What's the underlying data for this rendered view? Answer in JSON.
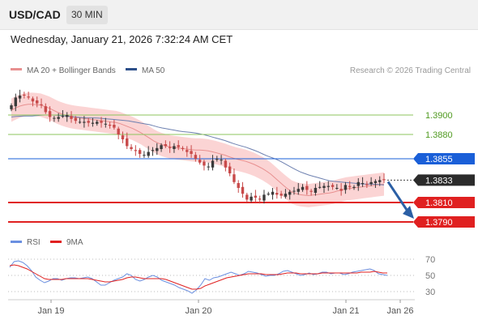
{
  "header": {
    "pair": "USD/CAD",
    "timeframe": "30 MIN"
  },
  "datetime": "Wednesday, January 21, 2026 7:32:24 AM CET",
  "legend": {
    "ma20": "MA 20 + Bollinger Bands",
    "ma50": "MA 50",
    "copyright": "Research © 2026 Trading Central"
  },
  "colors": {
    "up": "#3a3a3a",
    "down": "#c84a4a",
    "band": "#f9c6c6",
    "ma20": "#e89090",
    "ma50": "#6d80b0",
    "resistance": "#8dc45c",
    "pivot": "#1a5fd8",
    "support": "#e02020",
    "arrow": "#2b5fa5",
    "rsi": "#6a8fe0",
    "rsi_ma": "#e02020"
  },
  "chart_data": [
    {
      "type": "candlestick",
      "ylim": [
        1.3775,
        1.3935
      ],
      "x_tick_labels": [
        "Jan 19",
        "Jan 20",
        "Jan 21",
        "Jan 26"
      ],
      "levels": [
        {
          "label": "1.3900",
          "value": 1.39,
          "kind": "resistance"
        },
        {
          "label": "1.3880",
          "value": 1.388,
          "kind": "resistance"
        },
        {
          "label": "1.3855",
          "value": 1.3855,
          "kind": "pivot"
        },
        {
          "label": "1.3833",
          "value": 1.3833,
          "kind": "last"
        },
        {
          "label": "1.3810",
          "value": 1.381,
          "kind": "support"
        },
        {
          "label": "1.3790",
          "value": 1.379,
          "kind": "support"
        }
      ],
      "close_path": [
        1.391,
        1.3918,
        1.392,
        1.392,
        1.3918,
        1.3914,
        1.3912,
        1.391,
        1.3903,
        1.3898,
        1.3897,
        1.3898,
        1.3899,
        1.39,
        1.3896,
        1.3894,
        1.3893,
        1.3893,
        1.3892,
        1.3892,
        1.3893,
        1.3892,
        1.3891,
        1.3889,
        1.3887,
        1.388,
        1.3875,
        1.3868,
        1.3865,
        1.3863,
        1.386,
        1.3859,
        1.3862,
        1.3864,
        1.3866,
        1.3869,
        1.3868,
        1.3866,
        1.3868,
        1.3867,
        1.3865,
        1.3862,
        1.386,
        1.3855,
        1.3851,
        1.3848,
        1.3847,
        1.3853,
        1.3855,
        1.3854,
        1.3846,
        1.384,
        1.3831,
        1.3825,
        1.3819,
        1.3813,
        1.3816,
        1.3815,
        1.3813,
        1.3818,
        1.3819,
        1.3821,
        1.3818,
        1.3817,
        1.3819,
        1.3821,
        1.3822,
        1.3824,
        1.3826,
        1.3823,
        1.3821,
        1.3825,
        1.3826,
        1.3827,
        1.3827,
        1.3826,
        1.3825,
        1.3822,
        1.3828,
        1.3826,
        1.3826,
        1.3831,
        1.383,
        1.3828,
        1.3831,
        1.3832,
        1.3833,
        1.3833
      ],
      "ma50_path": [
        1.3898,
        1.3899,
        1.3899,
        1.39,
        1.39,
        1.3899,
        1.3898,
        1.3897,
        1.3897,
        1.3896,
        1.3895,
        1.3894,
        1.3892,
        1.389,
        1.3887,
        1.3885,
        1.3883,
        1.3882,
        1.388,
        1.3877,
        1.3874,
        1.387,
        1.3867,
        1.3863,
        1.3858,
        1.3854,
        1.3848,
        1.3842,
        1.3838,
        1.3835,
        1.3832,
        1.3831,
        1.383,
        1.3829,
        1.3829,
        1.3828
      ],
      "ma20_path": [
        1.3905,
        1.3909,
        1.3911,
        1.3911,
        1.391,
        1.3907,
        1.3903,
        1.39,
        1.3898,
        1.3897,
        1.3896,
        1.3895,
        1.3894,
        1.3893,
        1.3892,
        1.3889,
        1.3886,
        1.3882,
        1.3877,
        1.3872,
        1.3869,
        1.3867,
        1.3866,
        1.3865,
        1.3864,
        1.3864,
        1.3863,
        1.3861,
        1.3859,
        1.3856,
        1.3854,
        1.3852,
        1.3849,
        1.3845,
        1.384,
        1.3833,
        1.3826,
        1.382,
        1.3818,
        1.3817,
        1.3818,
        1.3819,
        1.382,
        1.3822,
        1.3824,
        1.3825,
        1.3826,
        1.3827,
        1.3828,
        1.3829
      ],
      "band_width": 0.0012,
      "projection": {
        "from": 1.3833,
        "to": 1.3795
      }
    },
    {
      "type": "line",
      "title": "RSI",
      "legend": [
        "RSI",
        "9MA"
      ],
      "y_tick_labels": [
        "70",
        "50",
        "30"
      ],
      "yticks": [
        70,
        50,
        30
      ],
      "ylim": [
        22,
        78
      ],
      "series": [
        {
          "name": "RSI",
          "values": [
            60,
            67,
            68,
            66,
            62,
            56,
            48,
            44,
            41,
            43,
            46,
            46,
            44,
            46,
            47,
            47,
            46,
            47,
            48,
            46,
            42,
            38,
            38,
            41,
            44,
            46,
            48,
            52,
            50,
            45,
            43,
            45,
            48,
            50,
            48,
            44,
            42,
            40,
            38,
            35,
            33,
            31,
            28,
            32,
            38,
            46,
            44,
            47,
            48,
            50,
            52,
            54,
            52,
            50,
            52,
            55,
            54,
            53,
            51,
            49,
            50,
            50,
            52,
            55,
            56,
            54,
            52,
            50,
            51,
            53,
            51,
            52,
            54,
            54,
            52,
            53,
            53,
            51,
            52,
            54,
            55,
            56,
            57,
            58,
            56,
            52,
            51,
            50
          ]
        },
        {
          "name": "9MA",
          "values": [
            62,
            63,
            62,
            60,
            58,
            55,
            52,
            49,
            46,
            45,
            45,
            45,
            45,
            46,
            46,
            46,
            46,
            46,
            46,
            45,
            44,
            43,
            42,
            42,
            43,
            44,
            45,
            47,
            48,
            48,
            47,
            46,
            46,
            46,
            46,
            46,
            45,
            43,
            41,
            39,
            37,
            35,
            33,
            33,
            34,
            37,
            39,
            41,
            43,
            45,
            47,
            48,
            49,
            50,
            51,
            52,
            52,
            52,
            52,
            51,
            51,
            51,
            51,
            52,
            53,
            53,
            53,
            52,
            52,
            52,
            52,
            52,
            53,
            53,
            53,
            53,
            53,
            53,
            53,
            53,
            53,
            54,
            54,
            54,
            55,
            54,
            53,
            53
          ]
        }
      ]
    }
  ]
}
